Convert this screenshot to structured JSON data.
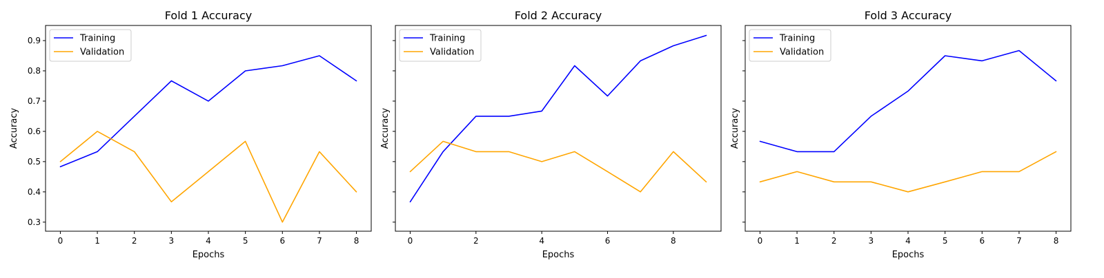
{
  "chart_data": [
    {
      "type": "line",
      "title": "Fold 1 Accuracy",
      "xlabel": "Epochs",
      "ylabel": "Accuracy",
      "x_ticks": [
        "0",
        "1",
        "2",
        "3",
        "4",
        "5",
        "6",
        "7",
        "8"
      ],
      "y_ticks": [
        "0.3",
        "0.4",
        "0.5",
        "0.6",
        "0.7",
        "0.8",
        "0.9"
      ],
      "xlim": [
        -0.4,
        8.4
      ],
      "ylim": [
        0.27,
        0.95
      ],
      "grid": false,
      "legend_position": "top-left",
      "series": [
        {
          "name": "Training",
          "color": "#0000ff",
          "x": [
            0,
            1,
            2,
            3,
            4,
            5,
            6,
            7,
            8
          ],
          "values": [
            0.483,
            0.533,
            0.65,
            0.767,
            0.7,
            0.8,
            0.817,
            0.85,
            0.767
          ]
        },
        {
          "name": "Validation",
          "color": "#ffa500",
          "x": [
            0,
            1,
            2,
            3,
            4,
            5,
            6,
            7,
            8
          ],
          "values": [
            0.5,
            0.6,
            0.533,
            0.367,
            0.467,
            0.567,
            0.3,
            0.533,
            0.4
          ]
        }
      ]
    },
    {
      "type": "line",
      "title": "Fold 2 Accuracy",
      "xlabel": "Epochs",
      "ylabel": "Accuracy",
      "x_ticks": [
        "0",
        "2",
        "4",
        "6",
        "8"
      ],
      "y_ticks": [],
      "xlim": [
        -0.45,
        9.45
      ],
      "ylim": [
        0.27,
        0.95
      ],
      "grid": false,
      "legend_position": "top-left",
      "series": [
        {
          "name": "Training",
          "color": "#0000ff",
          "x": [
            0,
            1,
            2,
            3,
            4,
            5,
            6,
            7,
            8,
            9
          ],
          "values": [
            0.367,
            0.533,
            0.65,
            0.65,
            0.667,
            0.817,
            0.717,
            0.833,
            0.883,
            0.917
          ]
        },
        {
          "name": "Validation",
          "color": "#ffa500",
          "x": [
            0,
            1,
            2,
            3,
            4,
            5,
            6,
            7,
            8,
            9
          ],
          "values": [
            0.467,
            0.567,
            0.533,
            0.533,
            0.5,
            0.533,
            0.467,
            0.4,
            0.533,
            0.433
          ]
        }
      ]
    },
    {
      "type": "line",
      "title": "Fold 3 Accuracy",
      "xlabel": "Epochs",
      "ylabel": "Accuracy",
      "x_ticks": [
        "0",
        "1",
        "2",
        "3",
        "4",
        "5",
        "6",
        "7",
        "8"
      ],
      "y_ticks": [],
      "xlim": [
        -0.4,
        8.4
      ],
      "ylim": [
        0.27,
        0.95
      ],
      "grid": false,
      "legend_position": "top-left",
      "series": [
        {
          "name": "Training",
          "color": "#0000ff",
          "x": [
            0,
            1,
            2,
            3,
            4,
            5,
            6,
            7,
            8
          ],
          "values": [
            0.567,
            0.533,
            0.533,
            0.65,
            0.733,
            0.85,
            0.833,
            0.867,
            0.767
          ]
        },
        {
          "name": "Validation",
          "color": "#ffa500",
          "x": [
            0,
            1,
            2,
            3,
            4,
            5,
            6,
            7,
            8
          ],
          "values": [
            0.433,
            0.467,
            0.433,
            0.433,
            0.4,
            0.433,
            0.467,
            0.467,
            0.533
          ]
        }
      ]
    }
  ]
}
